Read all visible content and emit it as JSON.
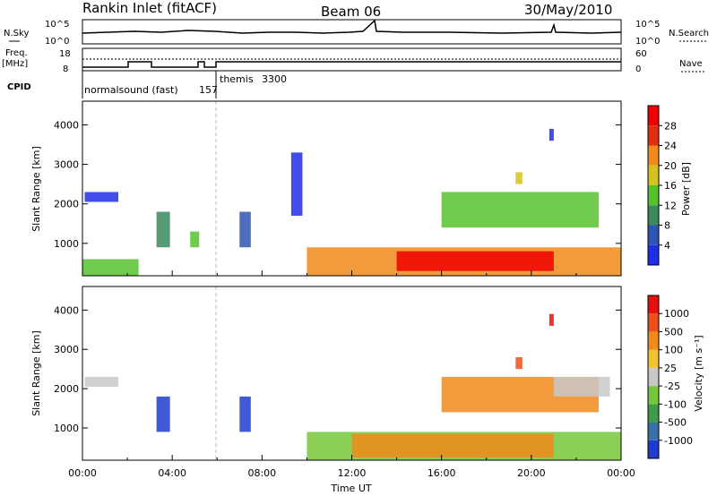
{
  "header": {
    "title": "Rankin Inlet (fitACF)",
    "beam": "Beam 06",
    "date": "30/May/2010"
  },
  "panels": {
    "nsky": {
      "label": "N.Sky",
      "tick_top": "10^5",
      "tick_bottom": "10^0",
      "right_label": "N.Search",
      "right_tick_top": "10^5",
      "right_tick_bottom": "10^0"
    },
    "freq": {
      "label_line1": "Freq.",
      "label_line2": "[MHz]",
      "tick_top": "18",
      "tick_bottom": "8",
      "right_label": "Nave",
      "right_tick_top": "60",
      "right_tick_bottom": "0"
    },
    "cpid": {
      "label": "CPID",
      "modes": [
        {
          "name": "normalsound (fast)",
          "id": "157"
        },
        {
          "name": "themis",
          "id": "3300"
        }
      ]
    }
  },
  "chart_data": [
    {
      "type": "heatmap",
      "title": "",
      "xlabel": "",
      "ylabel": "Slant Range [km]",
      "x_unit": "hours UT",
      "xlim": [
        0,
        24
      ],
      "ylim": [
        180,
        4600
      ],
      "yticks": [
        1000,
        2000,
        3000,
        4000
      ],
      "colorbar": {
        "label": "Power [dB]",
        "ticks": [
          "4",
          "8",
          "12",
          "16",
          "20",
          "24",
          "28"
        ],
        "colors": [
          "#1f2ee6",
          "#2e55b4",
          "#3a8a5c",
          "#57c12c",
          "#d4c21e",
          "#f08a1a",
          "#e03012",
          "#f00000"
        ]
      },
      "echo_regions": [
        {
          "t0": 0.1,
          "t1": 1.6,
          "r0": 2050,
          "r1": 2300,
          "level": 0
        },
        {
          "t0": 0.0,
          "t1": 2.5,
          "r0": 180,
          "r1": 600,
          "level": 3
        },
        {
          "t0": 3.3,
          "t1": 3.9,
          "r0": 900,
          "r1": 1800,
          "level": 2
        },
        {
          "t0": 4.8,
          "t1": 5.2,
          "r0": 900,
          "r1": 1300,
          "level": 3
        },
        {
          "t0": 7.0,
          "t1": 7.5,
          "r0": 900,
          "r1": 1800,
          "level": 1
        },
        {
          "t0": 9.3,
          "t1": 9.8,
          "r0": 1700,
          "r1": 3300,
          "level": 0
        },
        {
          "t0": 10.0,
          "t1": 24.0,
          "r0": 180,
          "r1": 900,
          "level": 5
        },
        {
          "t0": 14.0,
          "t1": 21.0,
          "r0": 300,
          "r1": 800,
          "level": 7
        },
        {
          "t0": 16.0,
          "t1": 23.0,
          "r0": 1400,
          "r1": 2300,
          "level": 3
        },
        {
          "t0": 19.3,
          "t1": 19.6,
          "r0": 2500,
          "r1": 2800,
          "level": 4
        },
        {
          "t0": 20.8,
          "t1": 21.0,
          "r0": 3600,
          "r1": 3900,
          "level": 0
        }
      ]
    },
    {
      "type": "heatmap",
      "title": "",
      "xlabel": "Time UT",
      "ylabel": "Slant Range [km]",
      "x_unit": "hours UT",
      "xlim": [
        0,
        24
      ],
      "ylim": [
        180,
        4600
      ],
      "xticks": [
        "00:00",
        "04:00",
        "08:00",
        "12:00",
        "16:00",
        "20:00",
        "00:00"
      ],
      "yticks": [
        1000,
        2000,
        3000,
        4000
      ],
      "colorbar": {
        "label": "Velocity [m s⁻¹]",
        "ticks": [
          "1000",
          "500",
          "100",
          "25",
          "-25",
          "-100",
          "-500",
          "-1000"
        ],
        "colors": [
          "#1f3ccf",
          "#3a6fa8",
          "#3f9a4a",
          "#77c73a",
          "#c8c8c8",
          "#f2c230",
          "#f08a1a",
          "#e9501a",
          "#e61010"
        ]
      },
      "echo_regions": [
        {
          "t0": 0.1,
          "t1": 1.6,
          "r0": 2050,
          "r1": 2300,
          "level": 4
        },
        {
          "t0": 3.3,
          "t1": 3.9,
          "r0": 900,
          "r1": 1800,
          "level": 0
        },
        {
          "t0": 7.0,
          "t1": 7.5,
          "r0": 900,
          "r1": 1800,
          "level": 0
        },
        {
          "t0": 10.0,
          "t1": 24.0,
          "r0": 180,
          "r1": 900,
          "level": 3
        },
        {
          "t0": 12.0,
          "t1": 21.0,
          "r0": 250,
          "r1": 850,
          "level": 6
        },
        {
          "t0": 16.0,
          "t1": 23.0,
          "r0": 1400,
          "r1": 2300,
          "level": 6
        },
        {
          "t0": 21.0,
          "t1": 23.5,
          "r0": 1800,
          "r1": 2300,
          "level": 4
        },
        {
          "t0": 19.3,
          "t1": 19.6,
          "r0": 2500,
          "r1": 2800,
          "level": 7
        },
        {
          "t0": 20.8,
          "t1": 21.0,
          "r0": 3600,
          "r1": 3900,
          "level": 8
        }
      ]
    }
  ]
}
